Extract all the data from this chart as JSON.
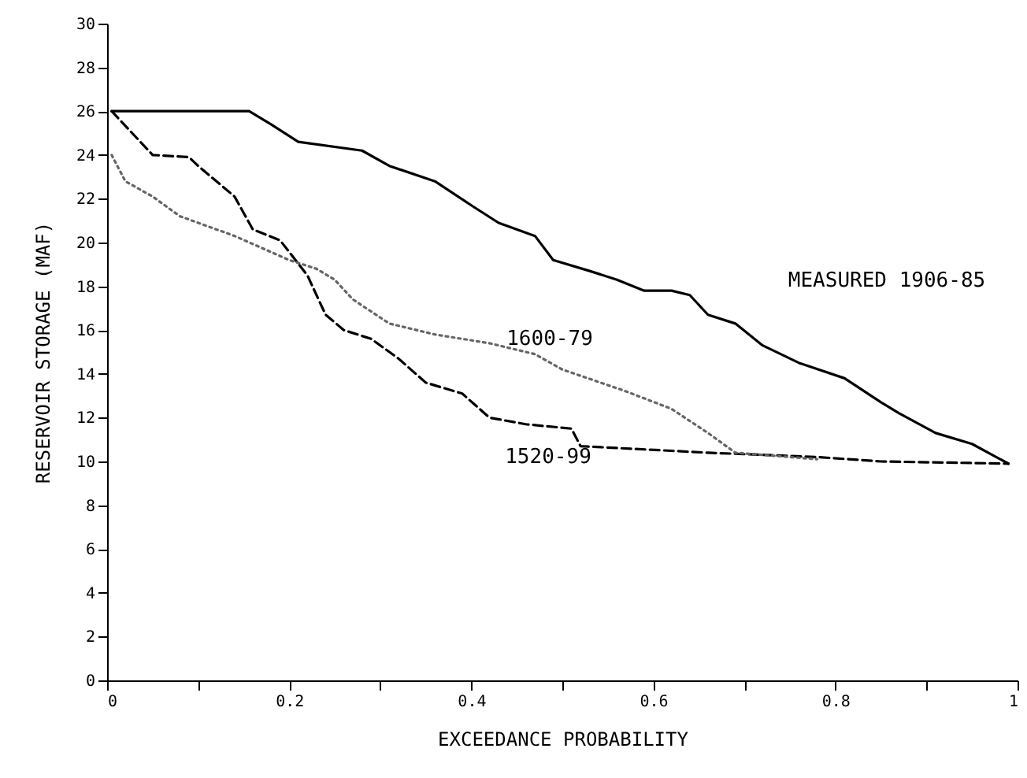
{
  "chart_data": {
    "type": "line",
    "xlabel": "EXCEEDANCE PROBABILITY",
    "ylabel": "RESERVOIR STORAGE (MAF)",
    "xlim": [
      0,
      1
    ],
    "xticks": [
      0,
      {
        "value": 0.1,
        "label": null
      },
      0.2,
      {
        "value": 0.3,
        "label": null
      },
      0.4,
      {
        "value": 0.5,
        "label": null
      },
      0.6,
      {
        "value": 0.7,
        "label": null
      },
      0.8,
      {
        "value": 0.9,
        "label": null
      },
      1
    ],
    "ylim": [
      0,
      30
    ],
    "yticks": [
      0,
      2,
      4,
      6,
      8,
      10,
      12,
      14,
      16,
      18,
      20,
      22,
      24,
      26,
      28,
      30
    ],
    "grid": false,
    "marker": "none",
    "series": [
      {
        "name": "MEASURED 1906-85",
        "color": "#000000",
        "line_style": "solid",
        "x": [
          0.005,
          0.156,
          0.18,
          0.21,
          0.28,
          0.31,
          0.36,
          0.4,
          0.43,
          0.47,
          0.49,
          0.53,
          0.56,
          0.59,
          0.62,
          0.64,
          0.66,
          0.69,
          0.72,
          0.76,
          0.81,
          0.85,
          0.87,
          0.91,
          0.95,
          0.99
        ],
        "values": [
          26,
          26,
          25.4,
          24.6,
          24.2,
          23.5,
          22.8,
          21.7,
          20.9,
          20.3,
          19.2,
          18.7,
          18.3,
          17.8,
          17.8,
          17.6,
          16.7,
          16.3,
          15.3,
          14.5,
          13.8,
          12.7,
          12.2,
          11.3,
          10.8,
          9.9
        ]
      },
      {
        "name": "1520-99",
        "color": "#000000",
        "line_style": "dashed",
        "x": [
          0.005,
          0.05,
          0.09,
          0.1,
          0.14,
          0.16,
          0.19,
          0.22,
          0.24,
          0.26,
          0.29,
          0.32,
          0.35,
          0.39,
          0.42,
          0.46,
          0.51,
          0.52,
          0.66,
          0.78,
          0.85,
          0.99
        ],
        "values": [
          26,
          24,
          23.9,
          23.5,
          22.1,
          20.6,
          20.1,
          18.5,
          16.7,
          16,
          15.6,
          14.7,
          13.6,
          13.1,
          12,
          11.7,
          11.5,
          10.7,
          10.4,
          10.2,
          10,
          9.9
        ]
      },
      {
        "name": "1600-79",
        "color": "#666666",
        "line_style": "dotted",
        "x": [
          0.005,
          0.02,
          0.05,
          0.08,
          0.14,
          0.2,
          0.23,
          0.25,
          0.27,
          0.31,
          0.36,
          0.42,
          0.47,
          0.5,
          0.57,
          0.62,
          0.66,
          0.69,
          0.78
        ],
        "values": [
          24,
          22.8,
          22.1,
          21.2,
          20.3,
          19.2,
          18.8,
          18.3,
          17.4,
          16.3,
          15.8,
          15.4,
          14.9,
          14.2,
          13.2,
          12.4,
          11.3,
          10.4,
          10.1
        ]
      }
    ]
  }
}
